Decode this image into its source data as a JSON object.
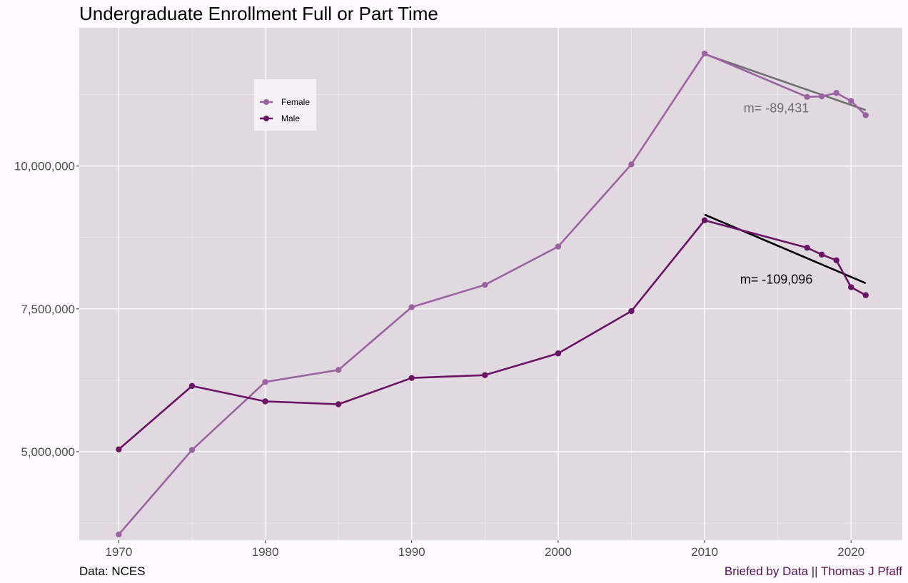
{
  "chart_data": {
    "type": "line",
    "title": "Undergraduate Enrollment Full or Part Time",
    "xlabel": "",
    "ylabel": "",
    "xlim": [
      1967.3,
      2023.5
    ],
    "ylim": [
      3450000,
      12420000
    ],
    "x_ticks": [
      1970,
      1980,
      1990,
      2000,
      2010,
      2020
    ],
    "y_ticks": [
      5000000,
      7500000,
      10000000
    ],
    "y_tick_labels": [
      "5,000,000",
      "7,500,000",
      "10,000,000"
    ],
    "grid": true,
    "legend_position": "top-left",
    "series": [
      {
        "name": "Female",
        "color": "#9b63a1",
        "x": [
          1970,
          1975,
          1980,
          1985,
          1990,
          1995,
          2000,
          2005,
          2010,
          2017,
          2018,
          2019,
          2020,
          2021
        ],
        "values": [
          3550000,
          5030000,
          6220000,
          6430000,
          7530000,
          7920000,
          8590000,
          10030000,
          11970000,
          11210000,
          11220000,
          11280000,
          11140000,
          10890000
        ]
      },
      {
        "name": "Male",
        "color": "#6b1466",
        "x": [
          1970,
          1975,
          1980,
          1985,
          1990,
          1995,
          2000,
          2005,
          2010,
          2017,
          2018,
          2019,
          2020,
          2021
        ],
        "values": [
          5040000,
          6150000,
          5880000,
          5830000,
          6290000,
          6340000,
          6720000,
          7460000,
          9050000,
          8570000,
          8450000,
          8350000,
          7880000,
          7740000
        ]
      }
    ],
    "trend_lines": [
      {
        "series": "Female",
        "x": [
          2010,
          2021
        ],
        "values": [
          11960000,
          10980000
        ],
        "color": "#707070",
        "label": "m= -89,431",
        "label_x": 2014.9,
        "label_y": 10940000
      },
      {
        "series": "Male",
        "x": [
          2010,
          2021
        ],
        "values": [
          9150000,
          7950000
        ],
        "color": "#000000",
        "label": "m= -109,096",
        "label_x": 2014.9,
        "label_y": 7940000
      }
    ]
  },
  "caption": {
    "source": "Data: NCES",
    "credit": "Briefed by Data || Thomas J Pfaff",
    "credit_color": "#5a0f5a"
  }
}
